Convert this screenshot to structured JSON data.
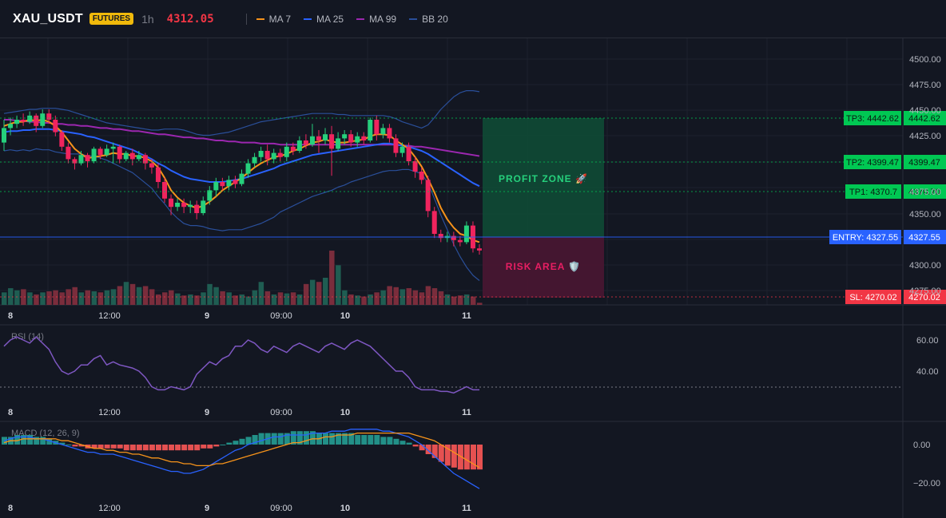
{
  "header": {
    "symbol": "XAU_USDT",
    "badge": "FUTURES",
    "timeframe": "1h",
    "price": "4312.05",
    "legend": [
      {
        "name": "MA 7",
        "color": "#f7931a"
      },
      {
        "name": "MA 25",
        "color": "#2962ff"
      },
      {
        "name": "MA 99",
        "color": "#9c27b0"
      },
      {
        "name": "BB 20",
        "color": "#2a4f9a"
      }
    ]
  },
  "price_axis": {
    "ticks": [
      "4500.00",
      "4475.00",
      "4450.00",
      "4425.00",
      "4375.00",
      "4350.00",
      "4300.00",
      "4275.00"
    ]
  },
  "levels": {
    "tp3": {
      "label": "TP3: 4442.62",
      "value": "4442.62",
      "color": "#00c853"
    },
    "tp2": {
      "label": "TP2: 4399.47",
      "value": "4399.47",
      "color": "#00c853"
    },
    "tp1": {
      "label": "TP1: 4370.7",
      "value": "4370.70",
      "color": "#00c853"
    },
    "entry": {
      "label": "ENTRY: 4327.55",
      "value": "4327.55",
      "color": "#2962ff"
    },
    "sl": {
      "label": "SL: 4270.02",
      "value": "4270.02",
      "color": "#f23645"
    }
  },
  "zones": {
    "profit": "PROFIT ZONE 🚀",
    "risk": "RISK AREA 🛡️"
  },
  "time_axis": [
    "8",
    "12:00",
    "9",
    "09:00",
    "10",
    "11"
  ],
  "rsi": {
    "label": "RSI (14)",
    "ticks": [
      "60.00",
      "40.00"
    ]
  },
  "macd": {
    "label": "MACD (12, 26, 9)",
    "ticks": [
      "0.00",
      "−20.00"
    ]
  },
  "chart_data": {
    "type": "candlestick",
    "series": [
      {
        "name": "MA 7"
      },
      {
        "name": "MA 25"
      },
      {
        "name": "MA 99"
      },
      {
        "name": "BB 20"
      }
    ],
    "y_range": [
      4260,
      4510
    ],
    "candles": [
      [
        4418,
        4432,
        4440,
        4410
      ],
      [
        4432,
        4436,
        4442,
        4425
      ],
      [
        4436,
        4440,
        4444,
        4432
      ],
      [
        4440,
        4438,
        4446,
        4434
      ],
      [
        4438,
        4444,
        4448,
        4436
      ],
      [
        4444,
        4434,
        4446,
        4428
      ],
      [
        4434,
        4446,
        4450,
        4432
      ],
      [
        4446,
        4440,
        4450,
        4436
      ],
      [
        4440,
        4428,
        4444,
        4424
      ],
      [
        4428,
        4414,
        4430,
        4410
      ],
      [
        4414,
        4402,
        4418,
        4398
      ],
      [
        4402,
        4398,
        4404,
        4392
      ],
      [
        4398,
        4406,
        4410,
        4396
      ],
      [
        4406,
        4400,
        4408,
        4394
      ],
      [
        4400,
        4412,
        4414,
        4398
      ],
      [
        4412,
        4406,
        4414,
        4402
      ],
      [
        4406,
        4412,
        4416,
        4404
      ],
      [
        4412,
        4414,
        4418,
        4398
      ],
      [
        4414,
        4402,
        4416,
        4398
      ],
      [
        4402,
        4408,
        4410,
        4400
      ],
      [
        4408,
        4402,
        4412,
        4396
      ],
      [
        4402,
        4406,
        4410,
        4400
      ],
      [
        4406,
        4398,
        4408,
        4392
      ],
      [
        4398,
        4394,
        4402,
        4388
      ],
      [
        4394,
        4380,
        4398,
        4374
      ],
      [
        4380,
        4364,
        4384,
        4360
      ],
      [
        4364,
        4356,
        4368,
        4348
      ],
      [
        4356,
        4360,
        4364,
        4352
      ],
      [
        4360,
        4356,
        4364,
        4350
      ],
      [
        4356,
        4358,
        4362,
        4350
      ],
      [
        4358,
        4350,
        4362,
        4344
      ],
      [
        4350,
        4362,
        4366,
        4348
      ],
      [
        4362,
        4372,
        4376,
        4358
      ],
      [
        4372,
        4380,
        4384,
        4366
      ],
      [
        4380,
        4376,
        4384,
        4372
      ],
      [
        4376,
        4382,
        4386,
        4372
      ],
      [
        4382,
        4378,
        4386,
        4374
      ],
      [
        4378,
        4388,
        4392,
        4376
      ],
      [
        4388,
        4398,
        4402,
        4384
      ],
      [
        4398,
        4404,
        4408,
        4394
      ],
      [
        4404,
        4410,
        4414,
        4400
      ],
      [
        4410,
        4402,
        4416,
        4396
      ],
      [
        4402,
        4408,
        4412,
        4398
      ],
      [
        4408,
        4404,
        4412,
        4400
      ],
      [
        4404,
        4414,
        4418,
        4400
      ],
      [
        4414,
        4410,
        4418,
        4406
      ],
      [
        4410,
        4420,
        4424,
        4408
      ],
      [
        4420,
        4416,
        4426,
        4412
      ],
      [
        4416,
        4424,
        4436,
        4414
      ],
      [
        4424,
        4420,
        4430,
        4408
      ],
      [
        4420,
        4426,
        4432,
        4416
      ],
      [
        4426,
        4412,
        4434,
        4386
      ],
      [
        4412,
        4422,
        4428,
        4410
      ],
      [
        4422,
        4426,
        4430,
        4416
      ],
      [
        4426,
        4418,
        4430,
        4414
      ],
      [
        4418,
        4424,
        4428,
        4414
      ],
      [
        4424,
        4420,
        4428,
        4416
      ],
      [
        4420,
        4440,
        4442,
        4418
      ],
      [
        4440,
        4426,
        4444,
        4420
      ],
      [
        4426,
        4432,
        4436,
        4422
      ],
      [
        4432,
        4422,
        4436,
        4418
      ],
      [
        4422,
        4408,
        4426,
        4404
      ],
      [
        4408,
        4414,
        4418,
        4404
      ],
      [
        4414,
        4400,
        4418,
        4396
      ],
      [
        4400,
        4390,
        4404,
        4384
      ],
      [
        4390,
        4382,
        4394,
        4378
      ],
      [
        4382,
        4352,
        4386,
        4346
      ],
      [
        4352,
        4330,
        4356,
        4326
      ],
      [
        4330,
        4326,
        4334,
        4322
      ],
      [
        4326,
        4328,
        4332,
        4322
      ],
      [
        4328,
        4324,
        4332,
        4318
      ],
      [
        4324,
        4322,
        4328,
        4318
      ],
      [
        4322,
        4338,
        4342,
        4320
      ],
      [
        4338,
        4316,
        4342,
        4312
      ],
      [
        4316,
        4314,
        4320,
        4310
      ]
    ],
    "ma7": [
      4434,
      4436,
      4438,
      4438,
      4440,
      4439,
      4440,
      4438,
      4434,
      4428,
      4420,
      4412,
      4407,
      4403,
      4404,
      4405,
      4406,
      4408,
      4407,
      4407,
      4405,
      4405,
      4403,
      4400,
      4394,
      4384,
      4372,
      4365,
      4360,
      4357,
      4355,
      4357,
      4361,
      4366,
      4372,
      4376,
      4380,
      4384,
      4389,
      4394,
      4398,
      4401,
      4404,
      4405,
      4407,
      4410,
      4412,
      4415,
      4418,
      4419,
      4421,
      4419,
      4418,
      4418,
      4419,
      4420,
      4421,
      4424,
      4426,
      4426,
      4425,
      4420,
      4416,
      4412,
      4404,
      4395,
      4383,
      4370,
      4355,
      4344,
      4336,
      4330,
      4328,
      4324,
      4322
    ],
    "ma25": [
      4428,
      4429,
      4429,
      4430,
      4430,
      4431,
      4431,
      4431,
      4430,
      4429,
      4428,
      4427,
      4426,
      4424,
      4423,
      4421,
      4419,
      4417,
      4415,
      4413,
      4411,
      4408,
      4405,
      4402,
      4398,
      4395,
      4391,
      4388,
      4385,
      4383,
      4382,
      4381,
      4380,
      4380,
      4380,
      4381,
      4382,
      4383,
      4385,
      4387,
      4389,
      4391,
      4393,
      4396,
      4398,
      4400,
      4402,
      4404,
      4406,
      4407,
      4408,
      4409,
      4410,
      4411,
      4412,
      4413,
      4414,
      4415,
      4416,
      4417,
      4417,
      4416,
      4415,
      4414,
      4412,
      4410,
      4407,
      4403,
      4399,
      4395,
      4391,
      4387,
      4383,
      4379,
      4376
    ],
    "ma99": [
      4440,
      4440,
      4439,
      4439,
      4438,
      4438,
      4437,
      4437,
      4436,
      4436,
      4435,
      4435,
      4434,
      4434,
      4433,
      4432,
      4432,
      4431,
      4431,
      4430,
      4429,
      4429,
      4428,
      4427,
      4426,
      4426,
      4425,
      4424,
      4423,
      4423,
      4422,
      4422,
      4421,
      4420,
      4420,
      4419,
      4419,
      4418,
      4418,
      4418,
      4417,
      4417,
      4417,
      4416,
      4416,
      4416,
      4416,
      4416,
      4416,
      4416,
      4416,
      4416,
      4416,
      4416,
      4416,
      4416,
      4416,
      4416,
      4416,
      4416,
      4416,
      4416,
      4415,
      4415,
      4414,
      4414,
      4413,
      4412,
      4411,
      4410,
      4409,
      4408,
      4407,
      4406,
      4405
    ],
    "bb_upper": [
      4446,
      4447,
      4448,
      4449,
      4450,
      4450,
      4451,
      4451,
      4451,
      4450,
      4449,
      4447,
      4445,
      4443,
      4441,
      4439,
      4437,
      4436,
      4435,
      4434,
      4433,
      4432,
      4431,
      4430,
      4430,
      4431,
      4431,
      4431,
      4430,
      4428,
      4426,
      4425,
      4425,
      4426,
      4427,
      4428,
      4430,
      4432,
      4434,
      4436,
      4438,
      4439,
      4440,
      4441,
      4442,
      4443,
      4444,
      4445,
      4446,
      4446,
      4446,
      4446,
      4445,
      4445,
      4444,
      4444,
      4444,
      4444,
      4444,
      4444,
      4443,
      4441,
      4438,
      4436,
      4434,
      4432,
      4435,
      4442,
      4450,
      4456,
      4462,
      4466,
      4468,
      4468,
      4467
    ],
    "bb_lower": [
      4410,
      4411,
      4410,
      4411,
      4410,
      4412,
      4411,
      4411,
      4409,
      4408,
      4407,
      4407,
      4407,
      4405,
      4405,
      4403,
      4401,
      4398,
      4395,
      4392,
      4389,
      4384,
      4379,
      4374,
      4366,
      4359,
      4351,
      4345,
      4340,
      4338,
      4338,
      4337,
      4335,
      4334,
      4333,
      4334,
      4334,
      4334,
      4336,
      4338,
      4340,
      4343,
      4346,
      4351,
      4354,
      4357,
      4360,
      4363,
      4366,
      4368,
      4370,
      4372,
      4375,
      4377,
      4380,
      4382,
      4384,
      4386,
      4388,
      4390,
      4391,
      4391,
      4392,
      4392,
      4390,
      4388,
      4379,
      4364,
      4348,
      4334,
      4320,
      4308,
      4298,
      4290,
      4285
    ],
    "volume": [
      12,
      16,
      14,
      15,
      12,
      10,
      12,
      13,
      14,
      12,
      15,
      17,
      12,
      14,
      13,
      12,
      14,
      15,
      18,
      22,
      20,
      17,
      18,
      15,
      10,
      12,
      14,
      11,
      9,
      10,
      9,
      12,
      20,
      17,
      13,
      12,
      9,
      10,
      8,
      14,
      22,
      13,
      10,
      12,
      11,
      12,
      10,
      20,
      24,
      22,
      26,
      52,
      38,
      14,
      10,
      9,
      8,
      10,
      12,
      14,
      18,
      17,
      15,
      16,
      14,
      12,
      18,
      16,
      13,
      10,
      8,
      9,
      10,
      8,
      2
    ],
    "rsi": [
      56,
      60,
      62,
      60,
      58,
      62,
      58,
      54,
      46,
      40,
      38,
      40,
      44,
      44,
      48,
      50,
      44,
      46,
      44,
      43,
      42,
      40,
      36,
      30,
      28,
      28,
      30,
      29,
      28,
      30,
      38,
      42,
      46,
      44,
      48,
      50,
      56,
      56,
      60,
      58,
      54,
      52,
      56,
      54,
      52,
      56,
      58,
      56,
      54,
      52,
      56,
      58,
      56,
      54,
      58,
      60,
      58,
      56,
      52,
      48,
      44,
      40,
      40,
      36,
      30,
      28,
      28,
      28,
      27,
      27,
      26,
      28,
      30,
      28,
      28
    ],
    "macd_hist": [
      4,
      4,
      5,
      5,
      5,
      4,
      4,
      3,
      2,
      1,
      0,
      -1,
      -1,
      -2,
      -2,
      -2,
      -2,
      -2,
      -2,
      -3,
      -3,
      -3,
      -3,
      -3,
      -3,
      -3,
      -3,
      -3,
      -3,
      -3,
      -3,
      -2,
      -2,
      -1,
      0,
      1,
      2,
      3,
      4,
      5,
      6,
      6,
      6,
      6,
      6,
      7,
      7,
      7,
      7,
      6,
      6,
      6,
      6,
      6,
      6,
      5,
      5,
      5,
      5,
      4,
      4,
      3,
      2,
      1,
      -1,
      -3,
      -5,
      -7,
      -9,
      -11,
      -12,
      -13,
      -13,
      -13,
      -13
    ],
    "macd_line": [
      2,
      3,
      4,
      4,
      4,
      3,
      3,
      2,
      1,
      0,
      -1,
      -2,
      -3,
      -4,
      -4,
      -5,
      -5,
      -5,
      -6,
      -7,
      -8,
      -9,
      -10,
      -11,
      -12,
      -13,
      -14,
      -14,
      -15,
      -15,
      -14,
      -13,
      -11,
      -9,
      -7,
      -5,
      -3,
      -2,
      0,
      1,
      2,
      3,
      4,
      4,
      5,
      5,
      5,
      5,
      6,
      6,
      6,
      7,
      7,
      7,
      8,
      8,
      8,
      8,
      8,
      7,
      7,
      6,
      5,
      4,
      2,
      0,
      -3,
      -6,
      -9,
      -12,
      -15,
      -17,
      -19,
      -21,
      -23
    ],
    "signal_line": [
      1,
      2,
      2,
      3,
      3,
      3,
      3,
      3,
      3,
      2,
      2,
      1,
      0,
      -1,
      -2,
      -2,
      -3,
      -3,
      -4,
      -4,
      -5,
      -5,
      -6,
      -7,
      -7,
      -8,
      -9,
      -9,
      -10,
      -10,
      -11,
      -11,
      -11,
      -10,
      -10,
      -9,
      -8,
      -7,
      -6,
      -5,
      -4,
      -3,
      -2,
      -1,
      0,
      1,
      1,
      2,
      3,
      3,
      4,
      4,
      5,
      5,
      5,
      6,
      6,
      6,
      6,
      6,
      6,
      6,
      6,
      6,
      5,
      4,
      3,
      2,
      0,
      -2,
      -4,
      -6,
      -8,
      -10,
      -12
    ]
  }
}
